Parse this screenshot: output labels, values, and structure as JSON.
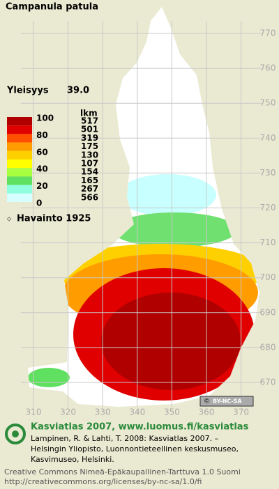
{
  "title": "Campanula patula",
  "frequency": {
    "label": "Yleisyys",
    "value": "39.0"
  },
  "legend": {
    "scale_labels": [
      "100",
      "80",
      "60",
      "40",
      "20",
      "0"
    ],
    "count_header": "lkm",
    "counts": [
      "517",
      "501",
      "319",
      "175",
      "130",
      "107",
      "154",
      "165",
      "267",
      "566"
    ],
    "colors": [
      "#b00000",
      "#e00000",
      "#ff5000",
      "#ff9c00",
      "#ffd000",
      "#ffff00",
      "#a8ff40",
      "#60e060",
      "#90ffe0",
      "#d8ffff"
    ],
    "observation": "Havainto 1925"
  },
  "grid": {
    "x_labels": [
      "310",
      "320",
      "330",
      "340",
      "350",
      "360",
      "370"
    ],
    "y_labels": [
      "770",
      "760",
      "750",
      "740",
      "730",
      "720",
      "710",
      "700",
      "690",
      "680",
      "670"
    ]
  },
  "license_badge": "BY-NC-SA",
  "footer": {
    "heading": "Kasviatlas 2007, www.luomus.fi/kasviatlas",
    "citation": [
      "Lampinen, R. & Lahti, T. 2008: Kasviatlas 2007. –",
      "Helsingin Yliopisto, Luonnontieteellinen keskusmuseo,",
      "Kasvimuseo, Helsinki."
    ],
    "license": [
      "Creative Commons Nimeä-Epäkaupallinen-Tarttuva 1.0 Suomi",
      "http://creativecommons.org/licenses/by-nc-sa/1.0/fi"
    ]
  }
}
